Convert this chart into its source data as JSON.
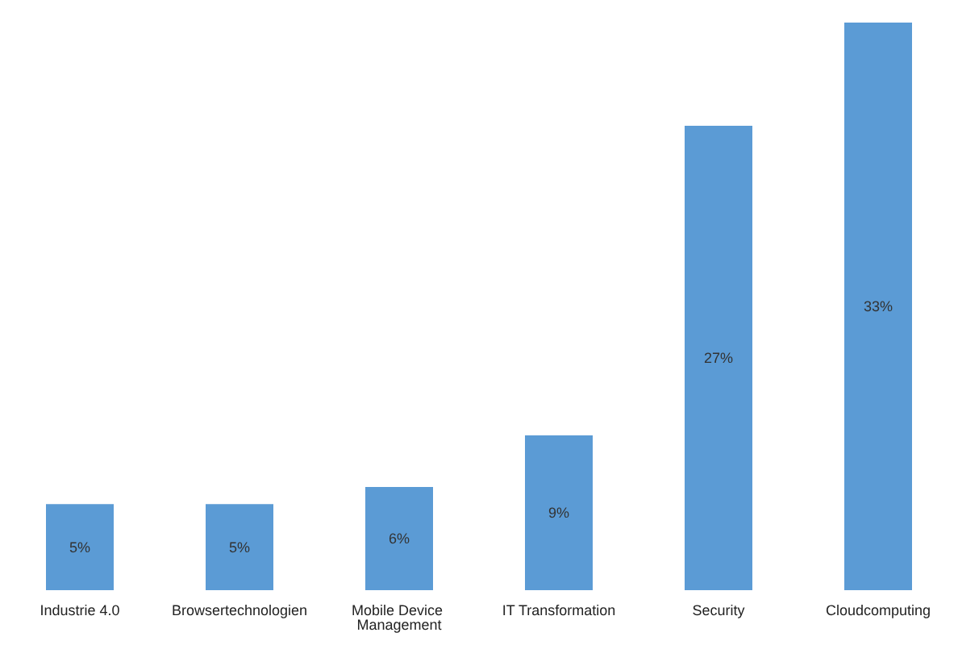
{
  "chart_data": {
    "type": "bar",
    "categories": [
      "Industrie 4.0",
      "Browsertechnologien",
      "Mobile Device Management",
      "IT Transformation",
      "Security",
      "Cloudcomputing"
    ],
    "values": [
      5,
      5,
      6,
      9,
      27,
      33
    ],
    "value_labels": [
      "5%",
      "5%",
      "6%",
      "9%",
      "27%",
      "33%"
    ],
    "color": "#5b9bd5"
  }
}
